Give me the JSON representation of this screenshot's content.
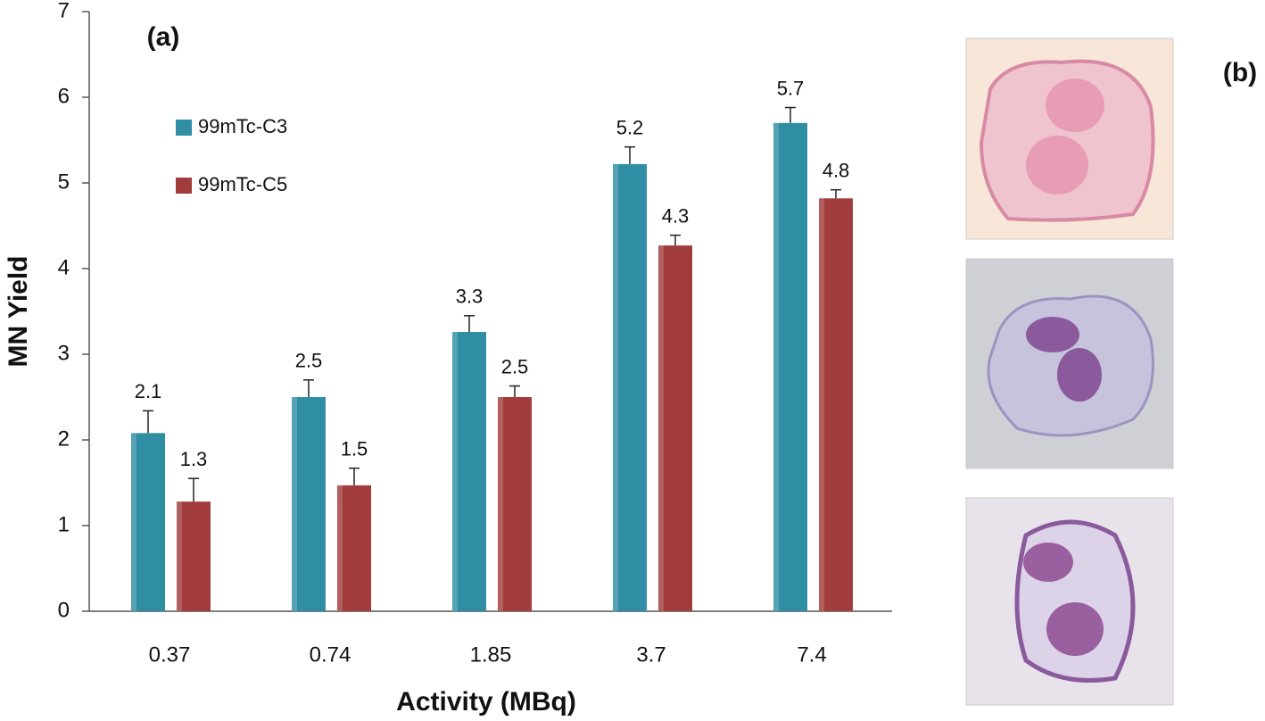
{
  "chart_data": {
    "type": "bar",
    "panel_label": "(a)",
    "side_label": "(b)",
    "x_label": "Activity (MBq)",
    "y_label": "MN Yield",
    "categories": [
      "0.37",
      "0.74",
      "1.85",
      "3.7",
      "7.4"
    ],
    "series": [
      {
        "name": "99mTc-C3",
        "color": "#2f8ea3",
        "values": [
          2.08,
          2.5,
          3.26,
          5.22,
          5.7
        ],
        "value_labels": [
          "2.1",
          "2.5",
          "3.3",
          "5.2",
          "5.7"
        ],
        "errors": [
          0.26,
          0.2,
          0.19,
          0.2,
          0.18
        ]
      },
      {
        "name": "99mTc-C5",
        "color": "#a23c3c",
        "values": [
          1.28,
          1.47,
          2.5,
          4.27,
          4.82
        ],
        "value_labels": [
          "1.3",
          "1.5",
          "2.5",
          "4.3",
          "4.8"
        ],
        "errors": [
          0.27,
          0.2,
          0.13,
          0.12,
          0.1
        ]
      }
    ],
    "ylim": [
      0,
      7
    ],
    "yticks": [
      0,
      1,
      2,
      3,
      4,
      5,
      6,
      7
    ],
    "legend": "upper-left"
  }
}
